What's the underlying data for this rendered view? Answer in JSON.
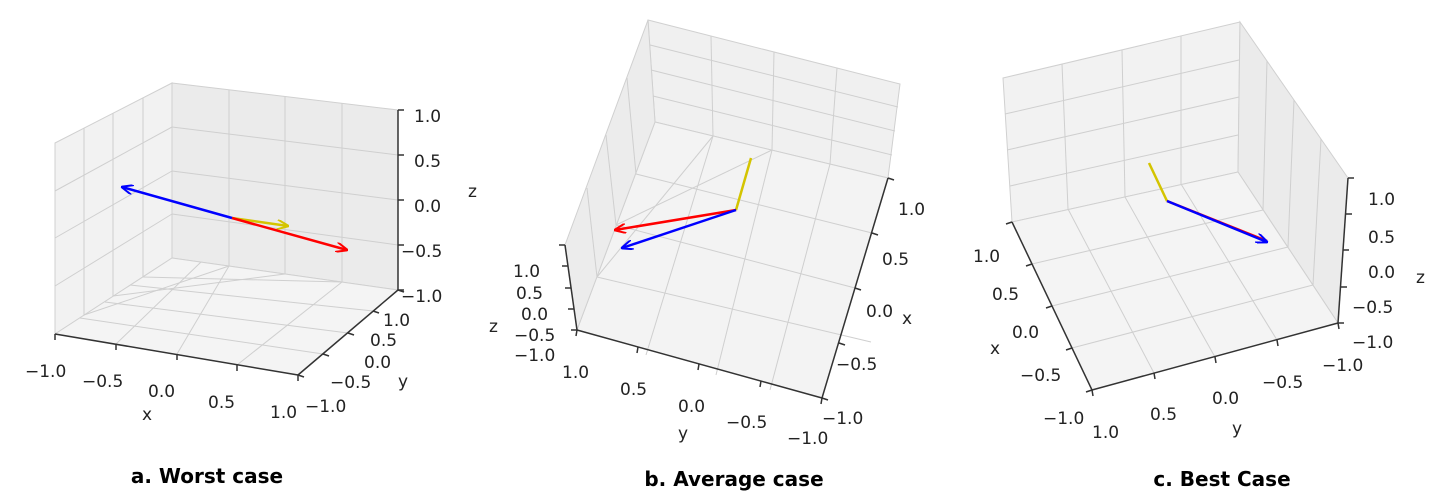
{
  "chart_data": [
    {
      "type": "3d-quiver",
      "caption": "a. Worst case",
      "xlim": [
        -1.0,
        1.0
      ],
      "ylim": [
        -1.0,
        1.0
      ],
      "zlim": [
        -1.0,
        1.0
      ],
      "xlabel": "x",
      "ylabel": "y",
      "zlabel": "z",
      "xticks": [
        "−1.0",
        "−0.5",
        "0.0",
        "0.5",
        "1.0"
      ],
      "yticks": [
        "−1.0",
        "−0.5",
        "0.0",
        "0.5",
        "1.0"
      ],
      "zticks": [
        "−1.0",
        "−0.5",
        "0.0",
        "0.5",
        "1.0"
      ],
      "grid": true,
      "vectors": [
        {
          "color": "#d4c400",
          "origin": [
            0,
            0,
            0
          ],
          "vector": [
            0.15,
            0.25,
            0.0
          ]
        },
        {
          "color": "#ff0000",
          "origin": [
            0,
            0,
            0
          ],
          "vector": [
            0.6,
            0.2,
            -0.55
          ]
        },
        {
          "color": "#0000ff",
          "origin": [
            0,
            0,
            0
          ],
          "vector": [
            -0.6,
            -0.2,
            0.55
          ]
        }
      ]
    },
    {
      "type": "3d-quiver",
      "caption": "b. Average case",
      "xlim": [
        -1.0,
        1.0
      ],
      "ylim": [
        -1.0,
        1.0
      ],
      "zlim": [
        -1.0,
        1.0
      ],
      "xlabel": "x",
      "ylabel": "y",
      "zlabel": "z",
      "xticks": [
        "−1.0",
        "−0.5",
        "0.0",
        "0.5",
        "1.0"
      ],
      "yticks": [
        "−1.0",
        "−0.5",
        "0.0",
        "0.5",
        "1.0"
      ],
      "zticks": [
        "−1.0",
        "−0.5",
        "0.0",
        "0.5",
        "1.0"
      ],
      "grid": true,
      "vectors": [
        {
          "color": "#d4c400",
          "origin": [
            0,
            0,
            0
          ],
          "vector": [
            0.1,
            0.05,
            0.55
          ]
        },
        {
          "color": "#ff0000",
          "origin": [
            0,
            0,
            0
          ],
          "vector": [
            0.1,
            0.65,
            -0.1
          ]
        },
        {
          "color": "#0000ff",
          "origin": [
            0,
            0,
            0
          ],
          "vector": [
            -0.1,
            0.65,
            -0.3
          ]
        }
      ]
    },
    {
      "type": "3d-quiver",
      "caption": "c. Best Case",
      "xlim": [
        -1.0,
        1.0
      ],
      "ylim": [
        -1.0,
        1.0
      ],
      "zlim": [
        -1.0,
        1.0
      ],
      "xlabel": "x",
      "ylabel": "y",
      "zlabel": "z",
      "xticks": [
        "−1.0",
        "−0.5",
        "0.0",
        "0.5",
        "1.0"
      ],
      "yticks": [
        "−1.0",
        "−0.5",
        "0.0",
        "0.5",
        "1.0"
      ],
      "zticks": [
        "−1.0",
        "−0.5",
        "0.0",
        "0.5",
        "1.0"
      ],
      "grid": true,
      "vectors": [
        {
          "color": "#d4c400",
          "origin": [
            0,
            0,
            0
          ],
          "vector": [
            0.1,
            0.0,
            0.4
          ]
        },
        {
          "color": "#ff0000",
          "origin": [
            0,
            0,
            0
          ],
          "vector": [
            -0.2,
            -0.6,
            -0.1
          ]
        },
        {
          "color": "#0000ff",
          "origin": [
            0,
            0,
            0
          ],
          "vector": [
            -0.2,
            -0.6,
            -0.1
          ]
        }
      ]
    }
  ]
}
